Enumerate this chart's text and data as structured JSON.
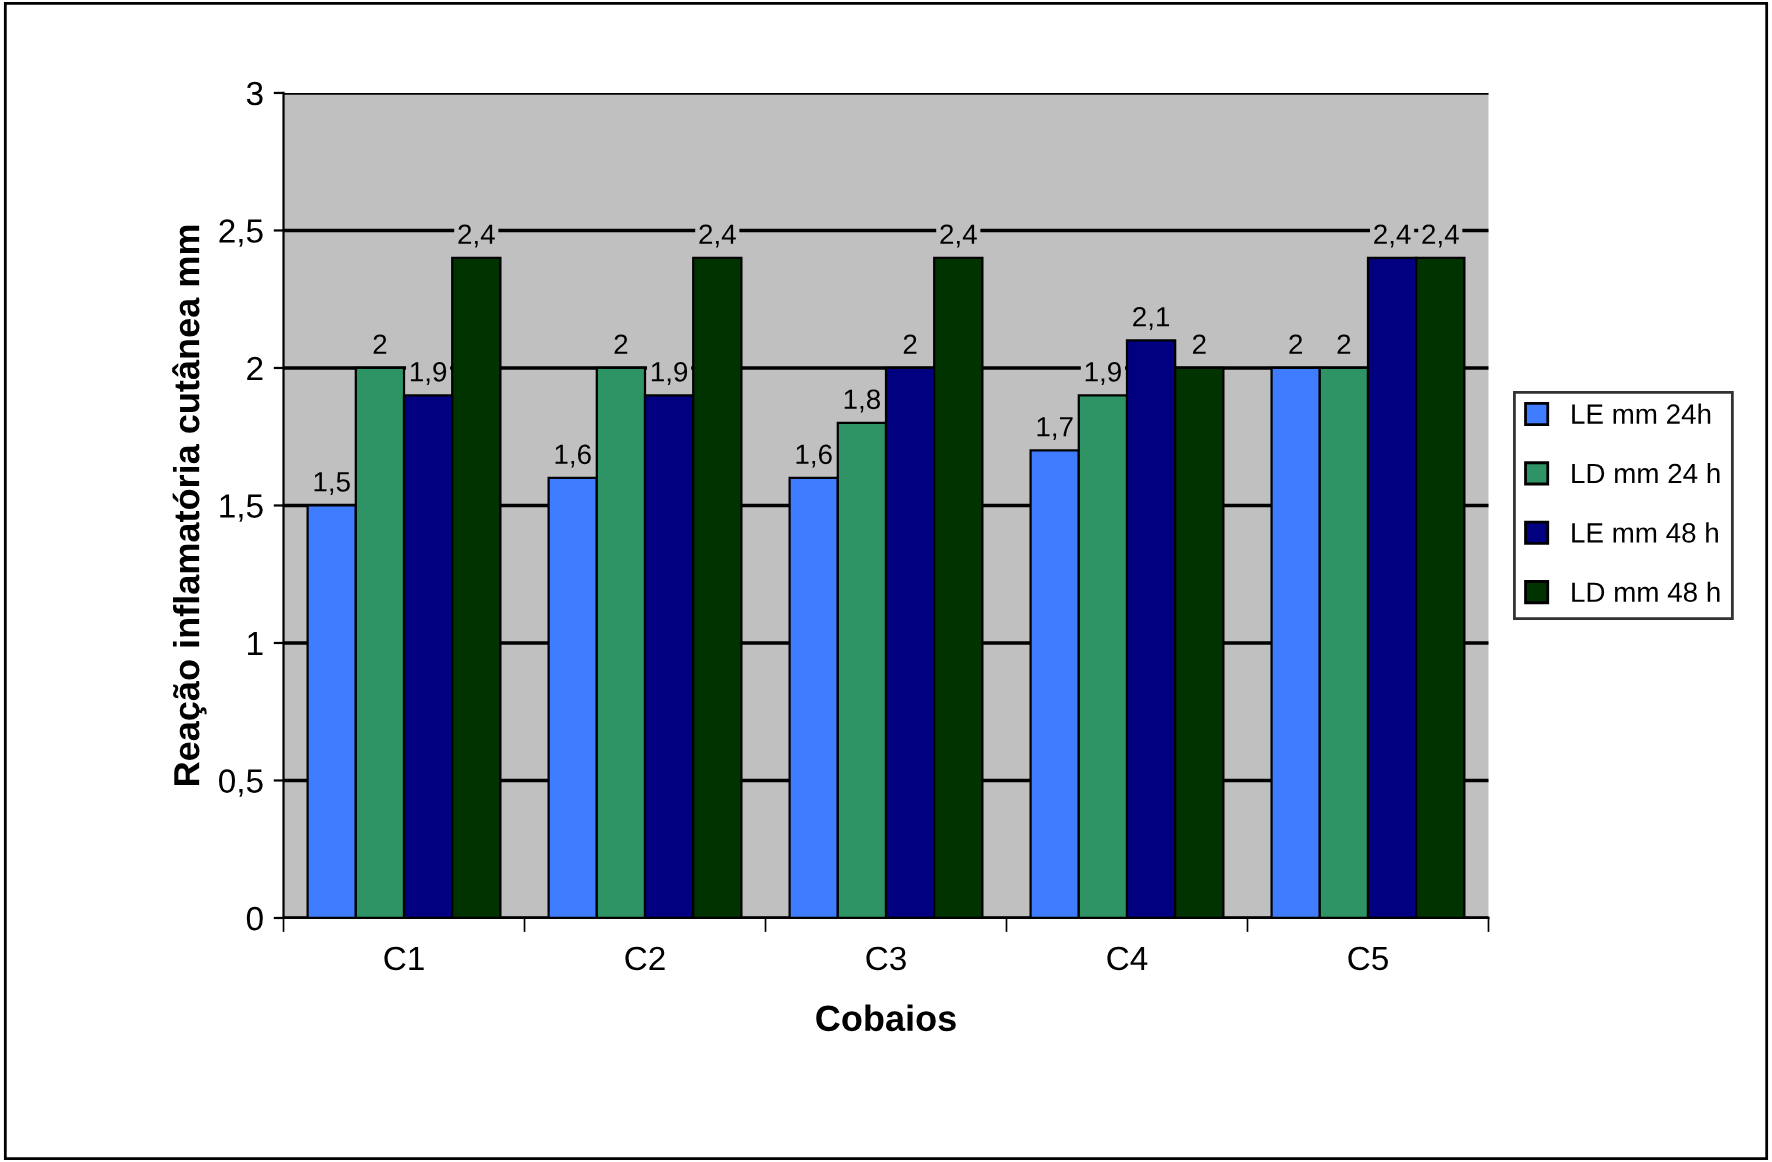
{
  "chart_data": {
    "type": "bar",
    "xlabel": "Cobaios",
    "ylabel": "Reação inflamatória cutânea mm",
    "categories": [
      "C1",
      "C2",
      "C3",
      "C4",
      "C5"
    ],
    "series": [
      {
        "name": "LE mm 24h",
        "color": "#3f7cff",
        "values": [
          1.5,
          1.6,
          1.6,
          1.7,
          2
        ],
        "value_labels": [
          "1,5",
          "1,6",
          "1,6",
          "1,7",
          "2"
        ]
      },
      {
        "name": "LD mm 24 h",
        "color": "#2e9466",
        "values": [
          2,
          2,
          1.8,
          1.9,
          2
        ],
        "value_labels": [
          "2",
          "2",
          "1,8",
          "1,9",
          "2"
        ]
      },
      {
        "name": "LE mm 48 h",
        "color": "#000080",
        "values": [
          1.9,
          1.9,
          2,
          2.1,
          2.4
        ],
        "value_labels": [
          "1,9",
          "1,9",
          "2",
          "2,1",
          "2,4"
        ]
      },
      {
        "name": "LD mm 48 h",
        "color": "#003300",
        "values": [
          2.4,
          2.4,
          2.4,
          2,
          2.4
        ],
        "value_labels": [
          "2,4",
          "2,4",
          "2,4",
          "2",
          "2,4"
        ]
      }
    ],
    "ylim": [
      0,
      3
    ],
    "yticks": [
      0,
      {
        "value": 0.5,
        "label": "0,5"
      },
      1,
      {
        "value": 1.5,
        "label": "1,5"
      },
      2,
      {
        "value": 2.5,
        "label": "2,5"
      },
      3
    ],
    "grid": "y",
    "legend": "right"
  }
}
